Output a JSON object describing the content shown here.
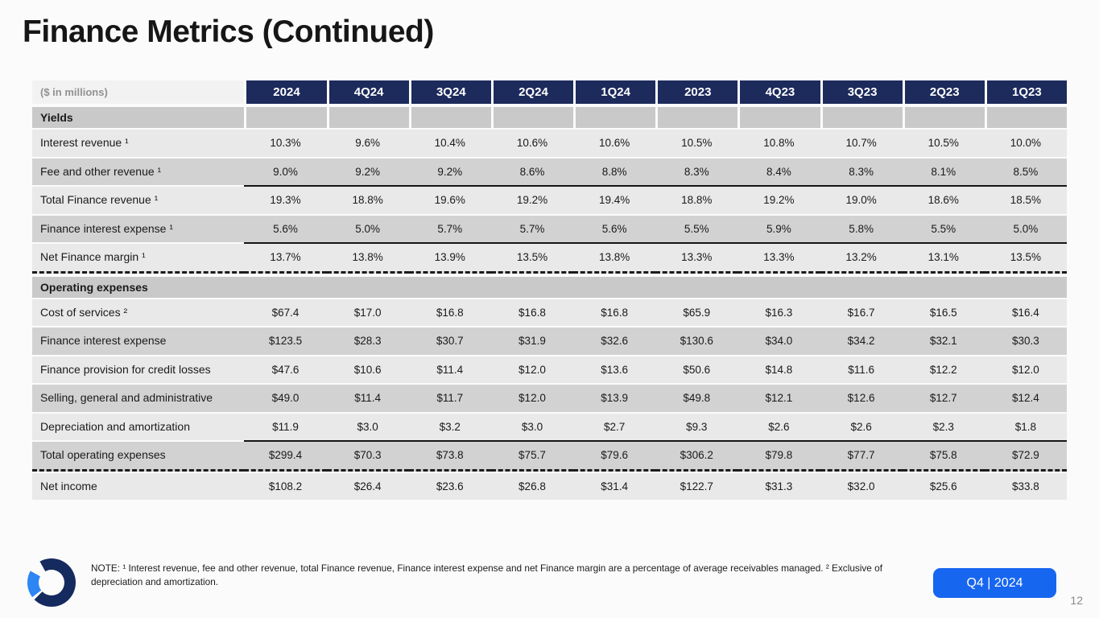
{
  "slide": {
    "title": "Finance Metrics (Continued)",
    "page_number": "12",
    "period_badge": "Q4 | 2024",
    "footnote": "NOTE: ¹ Interest revenue, fee and other revenue, total Finance revenue, Finance interest expense and net Finance margin are a percentage of average receivables managed. ² Exclusive of depreciation and amortization.",
    "logo": "ring-logo"
  },
  "colors": {
    "header_navy": "#1c2a5c",
    "section_gray": "#c9c9c9",
    "row_light": "#e9e9e9",
    "row_dark": "#d2d2d2",
    "badge_blue": "#1766f0",
    "logo_navy": "#152a5e",
    "logo_blue": "#2e86f5"
  },
  "table": {
    "unit_label": "($ in millions)",
    "columns": [
      "2024",
      "4Q24",
      "3Q24",
      "2Q24",
      "1Q24",
      "2023",
      "4Q23",
      "3Q23",
      "2Q23",
      "1Q23"
    ],
    "rows": [
      {
        "type": "section",
        "label": "Yields",
        "gaps": true
      },
      {
        "type": "data",
        "shade": "light",
        "label": "Interest revenue ¹",
        "values": [
          "10.3%",
          "9.6%",
          "10.4%",
          "10.6%",
          "10.6%",
          "10.5%",
          "10.8%",
          "10.7%",
          "10.5%",
          "10.0%"
        ]
      },
      {
        "type": "data",
        "shade": "dark",
        "label": "Fee and other revenue ¹",
        "values": [
          "9.0%",
          "9.2%",
          "9.2%",
          "8.6%",
          "8.8%",
          "8.3%",
          "8.4%",
          "8.3%",
          "8.1%",
          "8.5%"
        ]
      },
      {
        "type": "data",
        "shade": "light",
        "toprule": true,
        "label": "Total Finance revenue ¹",
        "values": [
          "19.3%",
          "18.8%",
          "19.6%",
          "19.2%",
          "19.4%",
          "18.8%",
          "19.2%",
          "19.0%",
          "18.6%",
          "18.5%"
        ]
      },
      {
        "type": "data",
        "shade": "dark",
        "label": "Finance interest expense ¹",
        "values": [
          "5.6%",
          "5.0%",
          "5.7%",
          "5.7%",
          "5.6%",
          "5.5%",
          "5.9%",
          "5.8%",
          "5.5%",
          "5.0%"
        ]
      },
      {
        "type": "data",
        "shade": "light",
        "toprule": true,
        "dashafter": true,
        "label": "Net Finance margin ¹",
        "values": [
          "13.7%",
          "13.8%",
          "13.9%",
          "13.5%",
          "13.8%",
          "13.3%",
          "13.3%",
          "13.2%",
          "13.1%",
          "13.5%"
        ]
      },
      {
        "type": "section",
        "label": "Operating expenses",
        "gaps": false
      },
      {
        "type": "data",
        "shade": "light",
        "label": "Cost of services ²",
        "values": [
          "$67.4",
          "$17.0",
          "$16.8",
          "$16.8",
          "$16.8",
          "$65.9",
          "$16.3",
          "$16.7",
          "$16.5",
          "$16.4"
        ]
      },
      {
        "type": "data",
        "shade": "dark",
        "label": "Finance interest expense",
        "values": [
          "$123.5",
          "$28.3",
          "$30.7",
          "$31.9",
          "$32.6",
          "$130.6",
          "$34.0",
          "$34.2",
          "$32.1",
          "$30.3"
        ]
      },
      {
        "type": "data",
        "shade": "light",
        "label": "Finance provision for credit losses",
        "values": [
          "$47.6",
          "$10.6",
          "$11.4",
          "$12.0",
          "$13.6",
          "$50.6",
          "$14.8",
          "$11.6",
          "$12.2",
          "$12.0"
        ]
      },
      {
        "type": "data",
        "shade": "dark",
        "label": "Selling, general and administrative",
        "values": [
          "$49.0",
          "$11.4",
          "$11.7",
          "$12.0",
          "$13.9",
          "$49.8",
          "$12.1",
          "$12.6",
          "$12.7",
          "$12.4"
        ]
      },
      {
        "type": "data",
        "shade": "light",
        "label": "Depreciation and amortization",
        "values": [
          "$11.9",
          "$3.0",
          "$3.2",
          "$3.0",
          "$2.7",
          "$9.3",
          "$2.6",
          "$2.6",
          "$2.3",
          "$1.8"
        ]
      },
      {
        "type": "data",
        "shade": "dark",
        "toprule": true,
        "dashafter": true,
        "label": "Total operating expenses",
        "values": [
          "$299.4",
          "$70.3",
          "$73.8",
          "$75.7",
          "$79.6",
          "$306.2",
          "$79.8",
          "$77.7",
          "$75.8",
          "$72.9"
        ]
      },
      {
        "type": "data",
        "shade": "light",
        "label": "Net income",
        "values": [
          "$108.2",
          "$26.4",
          "$23.6",
          "$26.8",
          "$31.4",
          "$122.7",
          "$31.3",
          "$32.0",
          "$25.6",
          "$33.8"
        ]
      }
    ]
  }
}
